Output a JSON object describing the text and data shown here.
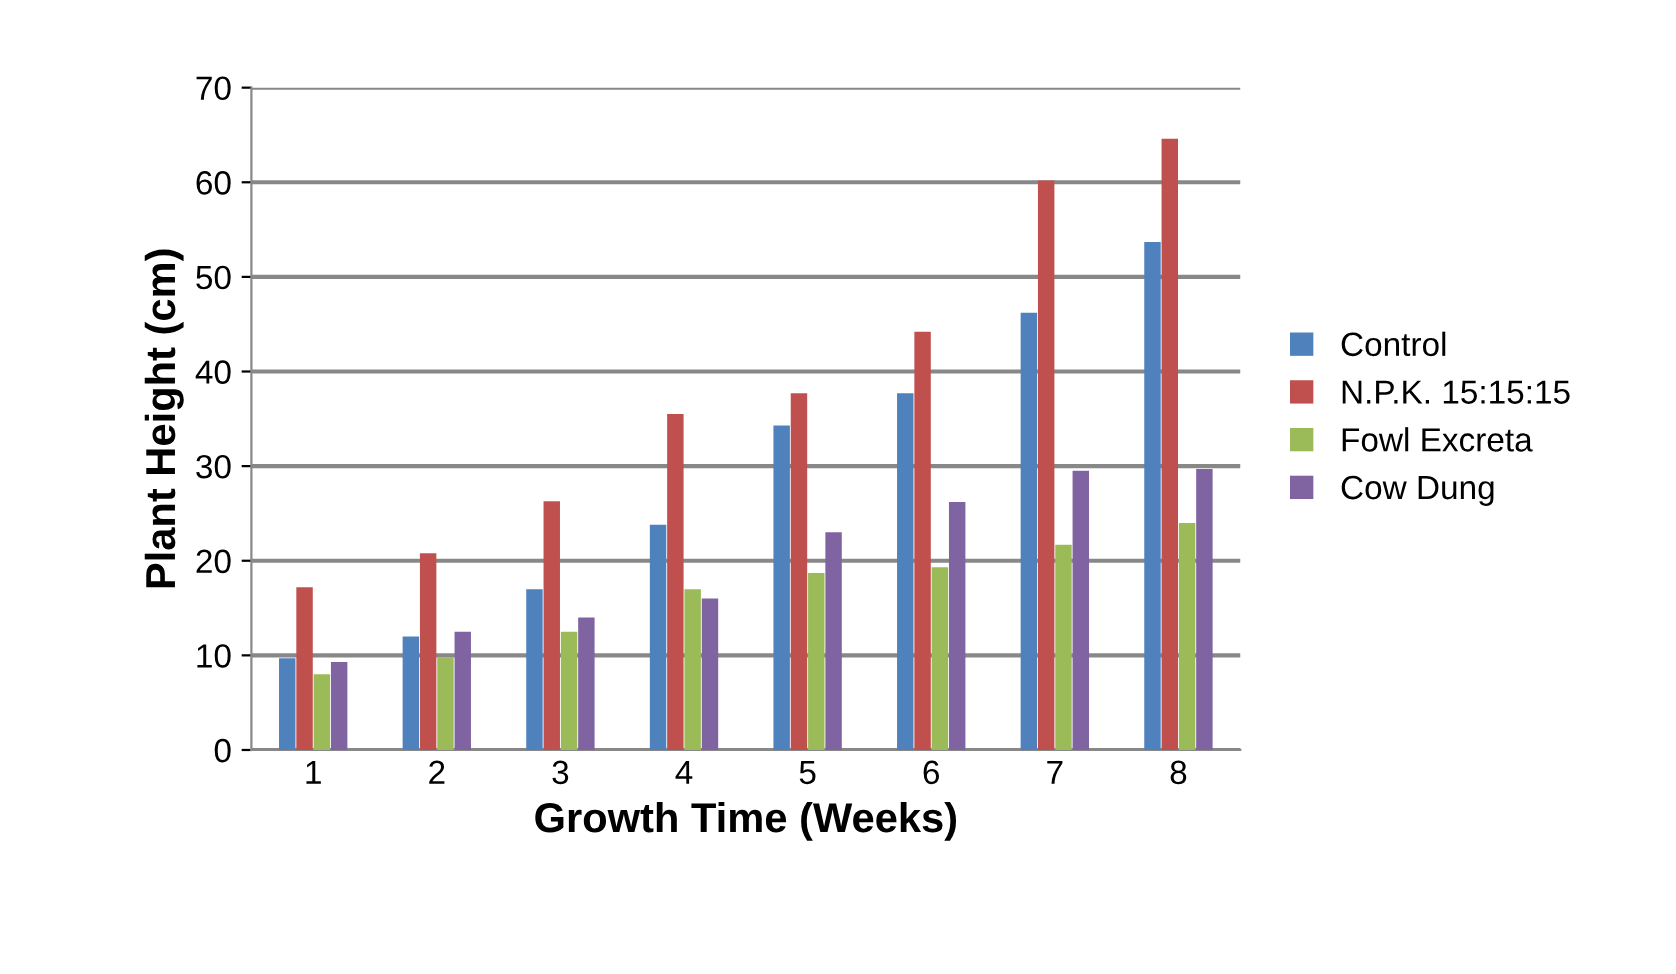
{
  "chart_data": {
    "type": "bar",
    "xlabel": "Growth Time (Weeks)",
    "ylabel": "Plant Height (cm)",
    "categories": [
      "1",
      "2",
      "3",
      "4",
      "5",
      "6",
      "7",
      "8"
    ],
    "series": [
      {
        "name": "Control",
        "color": "#4f81bd",
        "values": [
          9.7,
          12,
          17,
          23.8,
          34.3,
          37.7,
          46.2,
          53.7
        ]
      },
      {
        "name": "N.P.K. 15:15:15",
        "color": "#c0504d",
        "values": [
          17.2,
          20.8,
          26.3,
          35.5,
          37.7,
          44.2,
          60.2,
          64.6
        ]
      },
      {
        "name": "Fowl Excreta",
        "color": "#9bbb59",
        "values": [
          8,
          9.8,
          12.5,
          17,
          18.7,
          19.3,
          21.7,
          24
        ]
      },
      {
        "name": "Cow Dung",
        "color": "#8064a2",
        "values": [
          9.3,
          12.5,
          14,
          16,
          23,
          26.2,
          29.5,
          29.7
        ]
      }
    ],
    "ylim": [
      0,
      70
    ],
    "yticks": [
      0,
      10,
      20,
      30,
      40,
      50,
      60,
      70
    ],
    "grid": "y",
    "legend": "right"
  }
}
